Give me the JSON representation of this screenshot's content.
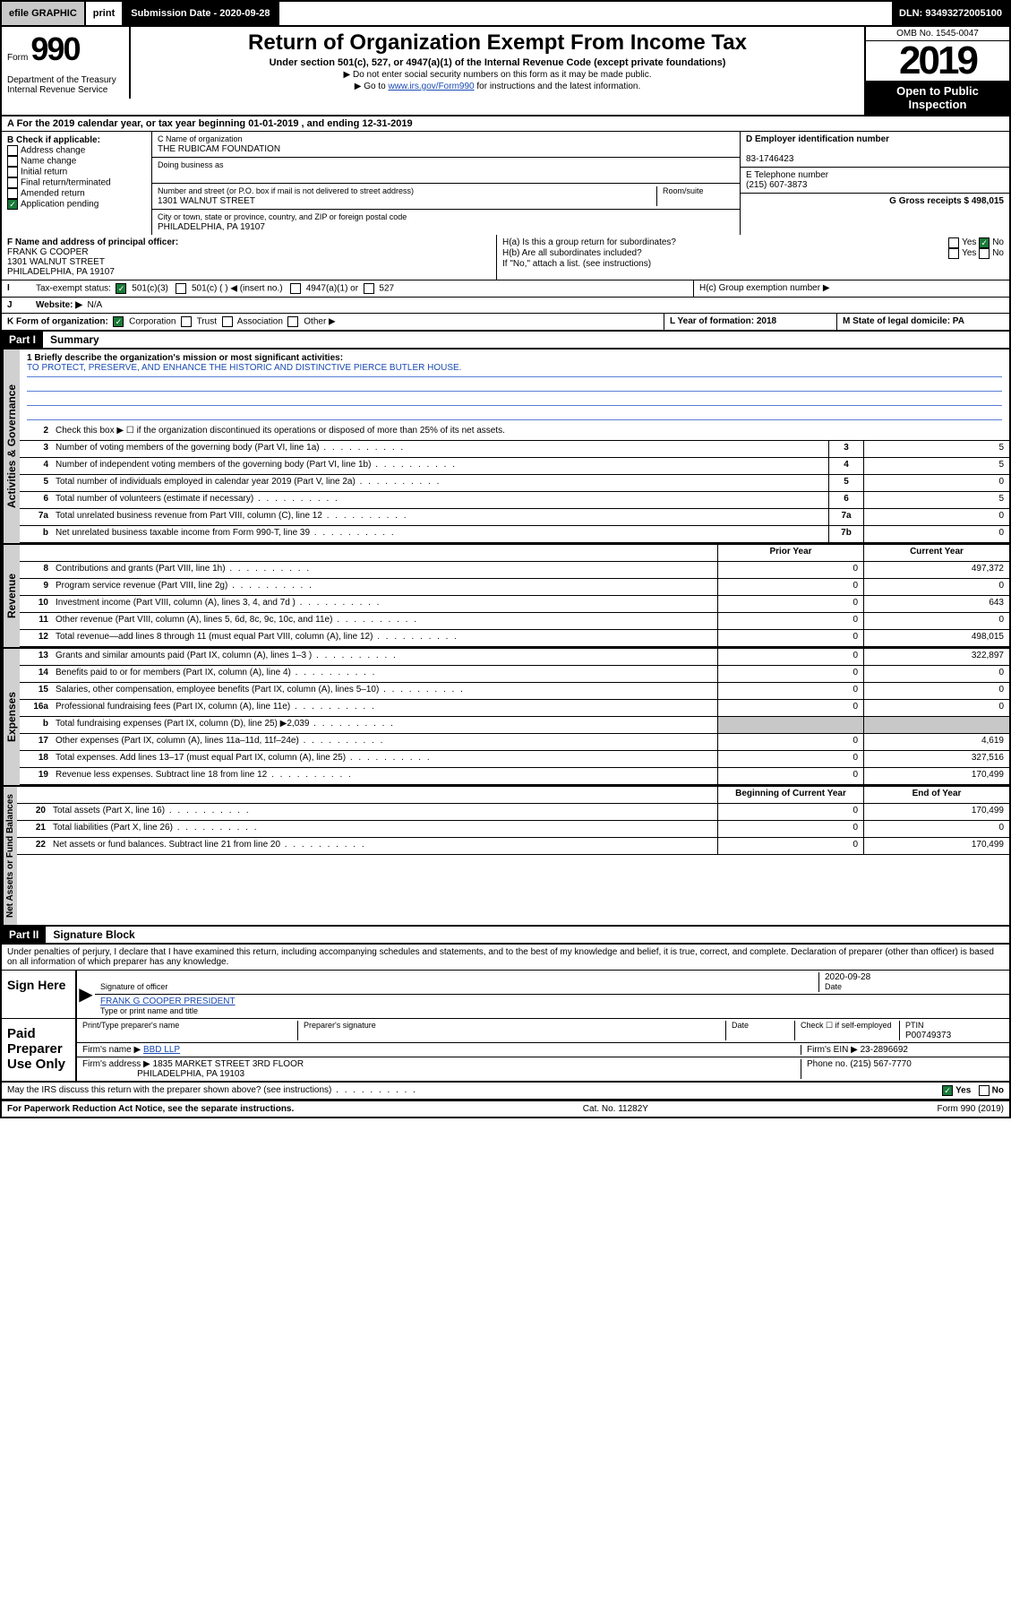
{
  "topbar": {
    "efile": "efile GRAPHIC",
    "print": "print",
    "subdate_label": "Submission Date - 2020-09-28",
    "dln": "DLN: 93493272005100"
  },
  "header": {
    "form_prefix": "Form",
    "form_num": "990",
    "title": "Return of Organization Exempt From Income Tax",
    "subtitle": "Under section 501(c), 527, or 4947(a)(1) of the Internal Revenue Code (except private foundations)",
    "note1": "▶ Do not enter social security numbers on this form as it may be made public.",
    "note2_pre": "▶ Go to ",
    "note2_link": "www.irs.gov/Form990",
    "note2_post": " for instructions and the latest information.",
    "omb": "OMB No. 1545-0047",
    "year": "2019",
    "open": "Open to Public Inspection",
    "dept": "Department of the Treasury",
    "irs": "Internal Revenue Service"
  },
  "lineA": "A For the 2019 calendar year, or tax year beginning 01-01-2019    , and ending 12-31-2019",
  "boxB": {
    "label": "B Check if applicable:",
    "items": [
      "Address change",
      "Name change",
      "Initial return",
      "Final return/terminated",
      "Amended return",
      "Application pending"
    ]
  },
  "boxC": {
    "label": "C Name of organization",
    "name": "THE RUBICAM FOUNDATION",
    "dba_label": "Doing business as",
    "addr_label": "Number and street (or P.O. box if mail is not delivered to street address)",
    "room_label": "Room/suite",
    "addr": "1301 WALNUT STREET",
    "city_label": "City or town, state or province, country, and ZIP or foreign postal code",
    "city": "PHILADELPHIA, PA  19107"
  },
  "boxD": {
    "label": "D Employer identification number",
    "val": "83-1746423"
  },
  "boxE": {
    "label": "E Telephone number",
    "val": "(215) 607-3873"
  },
  "boxG": {
    "label": "G Gross receipts $ 498,015"
  },
  "boxF": {
    "label": "F  Name and address of principal officer:",
    "name": "FRANK G COOPER",
    "addr1": "1301 WALNUT STREET",
    "addr2": "PHILADELPHIA, PA  19107"
  },
  "boxH": {
    "ha": "H(a)  Is this a group return for subordinates?",
    "hb": "H(b)  Are all subordinates included?",
    "hb_note": "If \"No,\" attach a list. (see instructions)",
    "hc": "H(c)  Group exemption number ▶",
    "yes": "Yes",
    "no": "No"
  },
  "boxI": {
    "label": "Tax-exempt status:",
    "opts": [
      "501(c)(3)",
      "501(c) (  ) ◀ (insert no.)",
      "4947(a)(1) or",
      "527"
    ]
  },
  "boxJ": {
    "label": "Website: ▶",
    "val": "N/A"
  },
  "boxK": {
    "label": "K Form of organization:",
    "opts": [
      "Corporation",
      "Trust",
      "Association",
      "Other ▶"
    ]
  },
  "boxL": {
    "label": "L Year of formation: 2018"
  },
  "boxM": {
    "label": "M State of legal domicile: PA"
  },
  "part1": {
    "header": "Part I",
    "title": "Summary",
    "line1_label": "1  Briefly describe the organization's mission or most significant activities:",
    "mission": "TO PROTECT, PRESERVE, AND ENHANCE THE HISTORIC AND DISTINCTIVE PIERCE BUTLER HOUSE.",
    "line2": "Check this box ▶ ☐  if the organization discontinued its operations or disposed of more than 25% of its net assets.",
    "sections": {
      "gov": "Activities & Governance",
      "rev": "Revenue",
      "exp": "Expenses",
      "net": "Net Assets or Fund Balances"
    },
    "col_prior": "Prior Year",
    "col_current": "Current Year",
    "col_begin": "Beginning of Current Year",
    "col_end": "End of Year",
    "rows_gov": [
      {
        "n": "3",
        "label": "Number of voting members of the governing body (Part VI, line 1a)",
        "box": "3",
        "val": "5"
      },
      {
        "n": "4",
        "label": "Number of independent voting members of the governing body (Part VI, line 1b)",
        "box": "4",
        "val": "5"
      },
      {
        "n": "5",
        "label": "Total number of individuals employed in calendar year 2019 (Part V, line 2a)",
        "box": "5",
        "val": "0"
      },
      {
        "n": "6",
        "label": "Total number of volunteers (estimate if necessary)",
        "box": "6",
        "val": "5"
      },
      {
        "n": "7a",
        "label": "Total unrelated business revenue from Part VIII, column (C), line 12",
        "box": "7a",
        "val": "0"
      },
      {
        "n": "b",
        "label": "Net unrelated business taxable income from Form 990-T, line 39",
        "box": "7b",
        "val": "0"
      }
    ],
    "rows_rev": [
      {
        "n": "8",
        "label": "Contributions and grants (Part VIII, line 1h)",
        "p": "0",
        "c": "497,372"
      },
      {
        "n": "9",
        "label": "Program service revenue (Part VIII, line 2g)",
        "p": "0",
        "c": "0"
      },
      {
        "n": "10",
        "label": "Investment income (Part VIII, column (A), lines 3, 4, and 7d )",
        "p": "0",
        "c": "643"
      },
      {
        "n": "11",
        "label": "Other revenue (Part VIII, column (A), lines 5, 6d, 8c, 9c, 10c, and 11e)",
        "p": "0",
        "c": "0"
      },
      {
        "n": "12",
        "label": "Total revenue—add lines 8 through 11 (must equal Part VIII, column (A), line 12)",
        "p": "0",
        "c": "498,015"
      }
    ],
    "rows_exp": [
      {
        "n": "13",
        "label": "Grants and similar amounts paid (Part IX, column (A), lines 1–3 )",
        "p": "0",
        "c": "322,897"
      },
      {
        "n": "14",
        "label": "Benefits paid to or for members (Part IX, column (A), line 4)",
        "p": "0",
        "c": "0"
      },
      {
        "n": "15",
        "label": "Salaries, other compensation, employee benefits (Part IX, column (A), lines 5–10)",
        "p": "0",
        "c": "0"
      },
      {
        "n": "16a",
        "label": "Professional fundraising fees (Part IX, column (A), line 11e)",
        "p": "0",
        "c": "0"
      },
      {
        "n": "b",
        "label": "Total fundraising expenses (Part IX, column (D), line 25) ▶2,039",
        "p": "",
        "c": "",
        "shaded": true
      },
      {
        "n": "17",
        "label": "Other expenses (Part IX, column (A), lines 11a–11d, 11f–24e)",
        "p": "0",
        "c": "4,619"
      },
      {
        "n": "18",
        "label": "Total expenses. Add lines 13–17 (must equal Part IX, column (A), line 25)",
        "p": "0",
        "c": "327,516"
      },
      {
        "n": "19",
        "label": "Revenue less expenses. Subtract line 18 from line 12",
        "p": "0",
        "c": "170,499"
      }
    ],
    "rows_net": [
      {
        "n": "20",
        "label": "Total assets (Part X, line 16)",
        "p": "0",
        "c": "170,499"
      },
      {
        "n": "21",
        "label": "Total liabilities (Part X, line 26)",
        "p": "0",
        "c": "0"
      },
      {
        "n": "22",
        "label": "Net assets or fund balances. Subtract line 21 from line 20",
        "p": "0",
        "c": "170,499"
      }
    ]
  },
  "part2": {
    "header": "Part II",
    "title": "Signature Block",
    "perjury": "Under penalties of perjury, I declare that I have examined this return, including accompanying schedules and statements, and to the best of my knowledge and belief, it is true, correct, and complete. Declaration of preparer (other than officer) is based on all information of which preparer has any knowledge."
  },
  "sign": {
    "left": "Sign Here",
    "sig_label": "Signature of officer",
    "date": "2020-09-28",
    "date_label": "Date",
    "name": "FRANK G COOPER  PRESIDENT",
    "name_label": "Type or print name and title"
  },
  "paid": {
    "left": "Paid Preparer Use Only",
    "col1": "Print/Type preparer's name",
    "col2": "Preparer's signature",
    "col3": "Date",
    "col4_check": "Check ☐ if self-employed",
    "col5_label": "PTIN",
    "col5_val": "P00749373",
    "firm_label": "Firm's name    ▶",
    "firm_name": "BBD LLP",
    "ein_label": "Firm's EIN ▶",
    "ein": "23-2896692",
    "addr_label": "Firm's address ▶",
    "addr": "1835 MARKET STREET 3RD FLOOR",
    "addr2": "PHILADELPHIA, PA  19103",
    "phone_label": "Phone no.",
    "phone": "(215) 567-7770"
  },
  "discuss": {
    "label": "May the IRS discuss this return with the preparer shown above? (see instructions)",
    "yes": "Yes",
    "no": "No"
  },
  "footer": {
    "left": "For Paperwork Reduction Act Notice, see the separate instructions.",
    "mid": "Cat. No. 11282Y",
    "right": "Form 990 (2019)"
  }
}
